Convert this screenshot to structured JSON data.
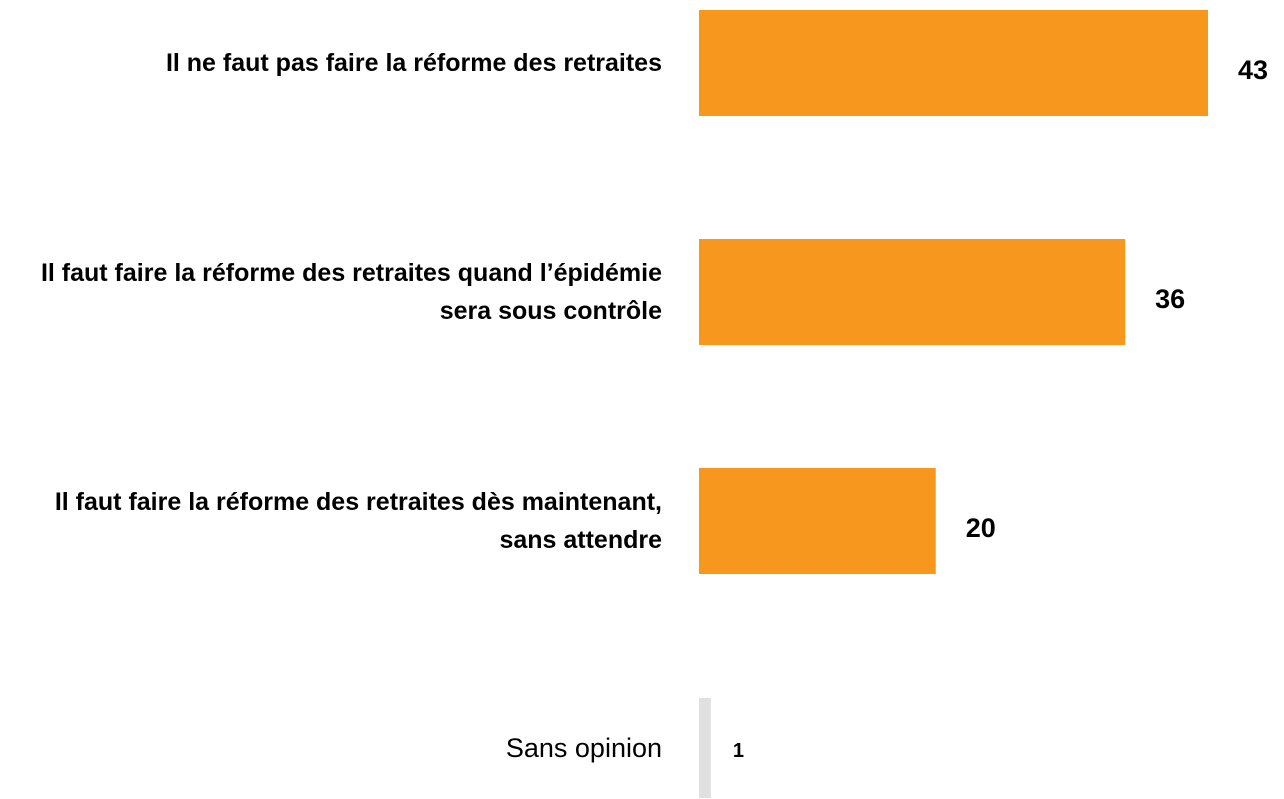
{
  "chart_data": {
    "type": "bar",
    "orientation": "horizontal",
    "categories": [
      "Il ne faut pas faire la réforme des retraites",
      "Il faut faire la réforme des retraites quand l’épidémie sera sous contrôle",
      "Il faut faire la réforme des retraites dès maintenant, sans attendre",
      "Sans opinion"
    ],
    "values": [
      43,
      36,
      20,
      1
    ],
    "colors": [
      "#f7971e",
      "#f7971e",
      "#f7971e",
      "#e0e0e0"
    ],
    "xlim": [
      0,
      43
    ]
  }
}
